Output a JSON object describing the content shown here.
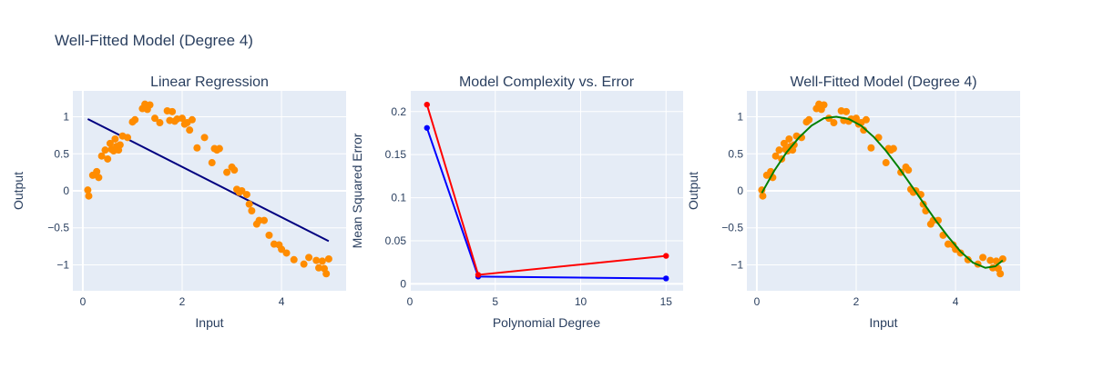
{
  "main_title": "Well-Fitted Model (Degree 4)",
  "colors": {
    "plot_bg": "#e5ecf6",
    "grid": "#ffffff",
    "text": "#2a3f5f",
    "scatter": "#ff8c00",
    "linear_line": "#000080",
    "poly_line": "#008000",
    "series_a": "#0000ff",
    "series_b": "#ff0000"
  },
  "chart_data": [
    {
      "type": "scatter",
      "title": "Linear Regression",
      "xlabel": "Input",
      "ylabel": "Output",
      "xlim": [
        -0.2,
        5.3
      ],
      "ylim": [
        -1.35,
        1.35
      ],
      "xticks": [
        0,
        2,
        4
      ],
      "yticks": [
        -1,
        -0.5,
        0,
        0.5,
        1
      ],
      "ytick_labels": [
        "−1",
        "−0.5",
        "0",
        "0.5",
        "1"
      ],
      "points_x": [
        0.1,
        0.12,
        0.2,
        0.28,
        0.32,
        0.38,
        0.45,
        0.5,
        0.55,
        0.58,
        0.62,
        0.65,
        0.68,
        0.72,
        0.75,
        0.8,
        0.9,
        1.0,
        1.05,
        1.2,
        1.25,
        1.3,
        1.35,
        1.45,
        1.55,
        1.7,
        1.75,
        1.8,
        1.85,
        1.9,
        2.0,
        2.05,
        2.1,
        2.15,
        2.2,
        2.3,
        2.45,
        2.6,
        2.65,
        2.7,
        2.75,
        2.9,
        3.0,
        3.05,
        3.1,
        3.15,
        3.2,
        3.3,
        3.35,
        3.4,
        3.5,
        3.55,
        3.65,
        3.75,
        3.85,
        3.95,
        4.0,
        4.1,
        4.25,
        4.45,
        4.55,
        4.7,
        4.75,
        4.82,
        4.86,
        4.9,
        4.95
      ],
      "points_y": [
        0.01,
        -0.07,
        0.21,
        0.26,
        0.18,
        0.47,
        0.55,
        0.43,
        0.64,
        0.56,
        0.54,
        0.7,
        0.6,
        0.55,
        0.62,
        0.74,
        0.72,
        0.93,
        0.96,
        1.11,
        1.17,
        1.1,
        1.16,
        0.98,
        0.92,
        1.08,
        0.95,
        1.07,
        0.94,
        0.97,
        0.98,
        0.9,
        0.92,
        0.82,
        0.96,
        0.58,
        0.72,
        0.38,
        0.57,
        0.55,
        0.57,
        0.25,
        0.32,
        0.28,
        0.02,
        -0.02,
        0.0,
        -0.05,
        -0.18,
        -0.27,
        -0.45,
        -0.4,
        -0.4,
        -0.6,
        -0.72,
        -0.73,
        -0.79,
        -0.84,
        -0.93,
        -0.99,
        -0.9,
        -0.94,
        -1.04,
        -0.95,
        -1.05,
        -1.12,
        -0.92
      ],
      "fit_line": {
        "x": [
          0.1,
          4.95
        ],
        "y": [
          0.97,
          -0.68
        ]
      }
    },
    {
      "type": "line",
      "title": "Model Complexity vs. Error",
      "xlabel": "Polynomial Degree",
      "ylabel": "Mean Squared Error",
      "xlim": [
        0,
        16
      ],
      "ylim": [
        -0.008,
        0.224
      ],
      "xticks": [
        0,
        5,
        10,
        15
      ],
      "yticks": [
        0,
        0.05,
        0.1,
        0.15,
        0.2
      ],
      "ytick_labels": [
        "0",
        "0.05",
        "0.1",
        "0.15",
        "0.2"
      ],
      "x": [
        1,
        4,
        15
      ],
      "series": [
        {
          "values": [
            0.181,
            0.0085,
            0.0063
          ]
        },
        {
          "values": [
            0.208,
            0.0105,
            0.0325
          ]
        }
      ]
    },
    {
      "type": "scatter",
      "title": "Well-Fitted Model (Degree 4)",
      "xlabel": "Input",
      "ylabel": "Output",
      "xlim": [
        -0.2,
        5.3
      ],
      "ylim": [
        -1.35,
        1.35
      ],
      "xticks": [
        0,
        2,
        4
      ],
      "yticks": [
        -1,
        -0.5,
        0,
        0.5,
        1
      ],
      "ytick_labels": [
        "−1",
        "−0.5",
        "0",
        "0.5",
        "1"
      ],
      "fit_curve": {
        "x": [
          0.1,
          0.35,
          0.6,
          0.85,
          1.1,
          1.35,
          1.6,
          1.85,
          2.1,
          2.35,
          2.6,
          2.85,
          3.1,
          3.35,
          3.6,
          3.85,
          4.1,
          4.35,
          4.6,
          4.8,
          4.95
        ],
        "y": [
          -0.03,
          0.27,
          0.52,
          0.72,
          0.88,
          0.98,
          1.0,
          0.97,
          0.88,
          0.73,
          0.54,
          0.32,
          0.08,
          -0.16,
          -0.4,
          -0.62,
          -0.82,
          -0.97,
          -1.04,
          -1.02,
          -0.94
        ]
      }
    }
  ]
}
